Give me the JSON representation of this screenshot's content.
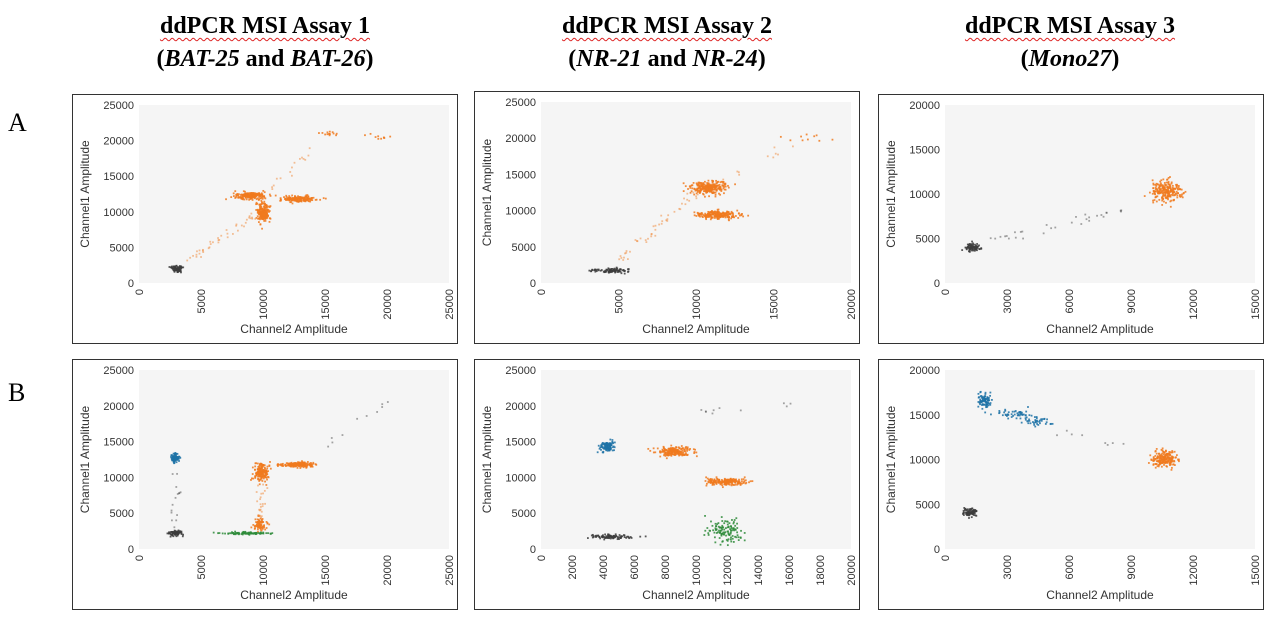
{
  "columns": [
    {
      "title_line1": "ddPCR MSI Assay 1",
      "open": "(",
      "gene1": "BAT-25",
      "and": " and ",
      "gene2": "BAT-26",
      "close": ")"
    },
    {
      "title_line1": "ddPCR MSI Assay 2",
      "open": "(",
      "gene1": "NR-21",
      "and": " and ",
      "gene2": "NR-24",
      "close": ")"
    },
    {
      "title_line1": "ddPCR MSI Assay 3",
      "open": "(",
      "gene1": "Mono27",
      "and": "",
      "gene2": "",
      "close": ")"
    }
  ],
  "rows": [
    {
      "label": "A"
    },
    {
      "label": "B"
    }
  ],
  "colors": {
    "negative": "#3c3c3c",
    "orange": "#f07a1e",
    "blue": "#1d72a6",
    "green": "#2e8b3a",
    "plot_bg": "#f5f5f5"
  },
  "chart_data": [
    {
      "type": "scatter",
      "xlabel": "Channel2 Amplitude",
      "ylabel": "Channel1 Amplitude",
      "xlim": [
        0,
        25000
      ],
      "ylim": [
        0,
        25000
      ],
      "xticks": [
        0,
        5000,
        10000,
        15000,
        20000,
        25000
      ],
      "yticks": [
        0,
        5000,
        10000,
        15000,
        20000,
        25000
      ],
      "xtick_labels": [
        "0",
        "5000",
        "10000",
        "15000",
        "20000",
        "25000"
      ],
      "ytick_labels": [
        "0",
        "5000",
        "10000",
        "15000",
        "20000",
        "25000"
      ],
      "clusters": [
        {
          "color": "negative",
          "x": 3000,
          "y": 2000,
          "sx": 250,
          "sy": 250,
          "n": 70
        },
        {
          "color": "orange",
          "x": 9000,
          "y": 12300,
          "sx": 650,
          "sy": 230,
          "n": 200
        },
        {
          "color": "orange",
          "x": 10000,
          "y": 10000,
          "sx": 280,
          "sy": 700,
          "n": 200
        },
        {
          "color": "orange",
          "x": 12900,
          "y": 11800,
          "sx": 700,
          "sy": 200,
          "n": 170
        },
        {
          "color": "orange",
          "x": 15100,
          "y": 21000,
          "sx": 500,
          "sy": 300,
          "n": 14
        },
        {
          "color": "orange",
          "x": 19500,
          "y": 20500,
          "sx": 700,
          "sy": 300,
          "n": 10
        }
      ],
      "trails": [
        {
          "color": "orange",
          "from": [
            4000,
            3200
          ],
          "to": [
            9500,
            9500
          ],
          "n": 40
        },
        {
          "color": "orange",
          "from": [
            10500,
            13000
          ],
          "to": [
            15000,
            20500
          ],
          "n": 15
        }
      ]
    },
    {
      "type": "scatter",
      "xlabel": "Channel2 Amplitude",
      "ylabel": "Channel1 Amplitude",
      "xlim": [
        0,
        20000
      ],
      "ylim": [
        0,
        25000
      ],
      "xticks": [
        0,
        5000,
        10000,
        15000,
        20000
      ],
      "yticks": [
        0,
        5000,
        10000,
        15000,
        20000,
        25000
      ],
      "xtick_labels": [
        "0",
        "5000",
        "10000",
        "15000",
        "20000"
      ],
      "ytick_labels": [
        "0",
        "5000",
        "10000",
        "15000",
        "20000",
        "25000"
      ],
      "clusters": [
        {
          "color": "negative",
          "x": 4500,
          "y": 1700,
          "sx": 700,
          "sy": 150,
          "n": 90
        },
        {
          "color": "orange",
          "x": 10800,
          "y": 13200,
          "sx": 550,
          "sy": 450,
          "n": 260
        },
        {
          "color": "orange",
          "x": 11500,
          "y": 9400,
          "sx": 650,
          "sy": 280,
          "n": 220
        },
        {
          "color": "orange",
          "x": 16800,
          "y": 20000,
          "sx": 600,
          "sy": 300,
          "n": 10
        }
      ],
      "trails": [
        {
          "color": "orange",
          "from": [
            5000,
            3000
          ],
          "to": [
            10000,
            12500
          ],
          "n": 45
        },
        {
          "color": "orange",
          "from": [
            11500,
            14000
          ],
          "to": [
            16500,
            19500
          ],
          "n": 10
        }
      ]
    },
    {
      "type": "scatter",
      "xlabel": "Channel2 Amplitude",
      "ylabel": "Channel1 Amplitude",
      "xlim": [
        0,
        15000
      ],
      "ylim": [
        0,
        20000
      ],
      "xticks": [
        0,
        3000,
        6000,
        9000,
        12000,
        15000
      ],
      "yticks": [
        0,
        5000,
        10000,
        15000,
        20000
      ],
      "xtick_labels": [
        "0",
        "3000",
        "6000",
        "9000",
        "12000",
        "15000"
      ],
      "ytick_labels": [
        "0",
        "5000",
        "10000",
        "15000",
        "20000"
      ],
      "clusters": [
        {
          "color": "negative",
          "x": 1300,
          "y": 4000,
          "sx": 170,
          "sy": 220,
          "n": 80
        },
        {
          "color": "orange",
          "x": 10700,
          "y": 10300,
          "sx": 350,
          "sy": 550,
          "n": 230
        }
      ],
      "trails": [
        {
          "color": "negative",
          "from": [
            1800,
            4600
          ],
          "to": [
            9000,
            8500
          ],
          "n": 30
        }
      ]
    },
    {
      "type": "scatter",
      "xlabel": "Channel2 Amplitude",
      "ylabel": "Channel1 Amplitude",
      "xlim": [
        0,
        25000
      ],
      "ylim": [
        0,
        25000
      ],
      "xticks": [
        0,
        5000,
        10000,
        15000,
        20000,
        25000
      ],
      "yticks": [
        0,
        5000,
        10000,
        15000,
        20000,
        25000
      ],
      "xtick_labels": [
        "0",
        "5000",
        "10000",
        "15000",
        "20000",
        "25000"
      ],
      "ytick_labels": [
        "0",
        "5000",
        "10000",
        "15000",
        "20000",
        "25000"
      ],
      "clusters": [
        {
          "color": "negative",
          "x": 2900,
          "y": 2200,
          "sx": 250,
          "sy": 200,
          "n": 70
        },
        {
          "color": "blue",
          "x": 2900,
          "y": 12700,
          "sx": 150,
          "sy": 350,
          "n": 90
        },
        {
          "color": "orange",
          "x": 9900,
          "y": 10700,
          "sx": 300,
          "sy": 600,
          "n": 180
        },
        {
          "color": "orange",
          "x": 12800,
          "y": 11800,
          "sx": 650,
          "sy": 200,
          "n": 180
        },
        {
          "color": "orange",
          "x": 9800,
          "y": 3400,
          "sx": 300,
          "sy": 400,
          "n": 80
        },
        {
          "color": "green",
          "x": 8800,
          "y": 2200,
          "sx": 1000,
          "sy": 90,
          "n": 90
        }
      ],
      "trails": [
        {
          "color": "orange",
          "from": [
            9800,
            4500
          ],
          "to": [
            9900,
            9000
          ],
          "n": 25
        },
        {
          "color": "negative",
          "from": [
            3000,
            3000
          ],
          "to": [
            3000,
            11000
          ],
          "n": 15
        },
        {
          "color": "negative",
          "from": [
            14000,
            13000
          ],
          "to": [
            20500,
            21000
          ],
          "n": 10
        }
      ]
    },
    {
      "type": "scatter",
      "xlabel": "Channel2 Amplitude",
      "ylabel": "Channel1 Amplitude",
      "xlim": [
        0,
        20000
      ],
      "ylim": [
        0,
        25000
      ],
      "xticks": [
        0,
        2000,
        4000,
        6000,
        8000,
        10000,
        12000,
        14000,
        16000,
        18000,
        20000
      ],
      "yticks": [
        0,
        5000,
        10000,
        15000,
        20000,
        25000
      ],
      "xtick_labels": [
        "0",
        "2000",
        "4000",
        "6000",
        "8000",
        "10000",
        "12000",
        "14000",
        "16000",
        "18000",
        "20000"
      ],
      "ytick_labels": [
        "0",
        "5000",
        "10000",
        "15000",
        "20000",
        "25000"
      ],
      "clusters": [
        {
          "color": "negative",
          "x": 4500,
          "y": 1700,
          "sx": 700,
          "sy": 150,
          "n": 90
        },
        {
          "color": "blue",
          "x": 4300,
          "y": 14300,
          "sx": 230,
          "sy": 350,
          "n": 110
        },
        {
          "color": "orange",
          "x": 8600,
          "y": 13600,
          "sx": 550,
          "sy": 330,
          "n": 200
        },
        {
          "color": "orange",
          "x": 11900,
          "y": 9400,
          "sx": 600,
          "sy": 230,
          "n": 190
        },
        {
          "color": "green",
          "x": 11900,
          "y": 2600,
          "sx": 550,
          "sy": 900,
          "n": 120
        }
      ],
      "trails": [
        {
          "color": "negative",
          "from": [
            9000,
            19000
          ],
          "to": [
            16500,
            20000
          ],
          "n": 10
        }
      ]
    },
    {
      "type": "scatter",
      "xlabel": "Channel2 Amplitude",
      "ylabel": "Channel1 Amplitude",
      "xlim": [
        0,
        15000
      ],
      "ylim": [
        0,
        20000
      ],
      "xticks": [
        0,
        3000,
        6000,
        9000,
        12000,
        15000
      ],
      "yticks": [
        0,
        5000,
        10000,
        15000,
        20000
      ],
      "xtick_labels": [
        "0",
        "3000",
        "6000",
        "9000",
        "12000",
        "15000"
      ],
      "ytick_labels": [
        "0",
        "5000",
        "10000",
        "15000",
        "20000"
      ],
      "clusters": [
        {
          "color": "negative",
          "x": 1200,
          "y": 4100,
          "sx": 170,
          "sy": 230,
          "n": 80
        },
        {
          "color": "blue",
          "x": 1900,
          "y": 16600,
          "sx": 180,
          "sy": 450,
          "n": 80
        },
        {
          "color": "blue",
          "x": 3300,
          "y": 15100,
          "sx": 450,
          "sy": 250,
          "n": 50
        },
        {
          "color": "blue",
          "x": 4500,
          "y": 14200,
          "sx": 300,
          "sy": 250,
          "n": 35
        },
        {
          "color": "orange",
          "x": 10600,
          "y": 10000,
          "sx": 300,
          "sy": 450,
          "n": 200
        }
      ],
      "trails": [
        {
          "color": "negative",
          "from": [
            5500,
            13000
          ],
          "to": [
            9500,
            11000
          ],
          "n": 8
        }
      ]
    }
  ]
}
